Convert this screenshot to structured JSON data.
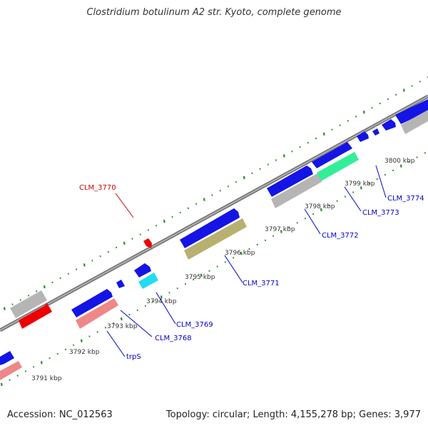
{
  "title": "Clostridium botulinum A2 str. Kyoto, complete genome",
  "accession": "Accession: NC_012563",
  "summary": "Topology: circular; Length: 4,155,278 bp; Genes: 3,977",
  "colors": {
    "backbone": "#808080",
    "tick": "#2e8b2e",
    "cds_forward": "#1414e6",
    "cds_highlight": "#ee0000",
    "trna": "#ee8888",
    "rrna": "#b8b070",
    "misc": "#aaaaaa",
    "cyan": "#22ddee",
    "green": "#33ee99",
    "label_default": "#0000cc",
    "label_red": "#cc0000"
  },
  "kbp_labels": [
    "3791 kbp",
    "3792 kbp",
    "3793 kbp",
    "3794 kbp",
    "3795 kbp",
    "3796 kbp",
    "3797 kbp",
    "3798 kbp",
    "3799 kbp",
    "3800 kbp"
  ],
  "gene_labels": [
    {
      "id": "CLM_3770",
      "color": "red"
    },
    {
      "id": "CLM_3771",
      "color": "blue"
    },
    {
      "id": "CLM_3772",
      "color": "blue"
    },
    {
      "id": "CLM_3773",
      "color": "blue"
    },
    {
      "id": "CLM_3774",
      "color": "blue"
    },
    {
      "id": "CLM_3769",
      "color": "blue"
    },
    {
      "id": "CLM_3768",
      "color": "blue"
    },
    {
      "id": "trpS",
      "color": "blue"
    }
  ]
}
